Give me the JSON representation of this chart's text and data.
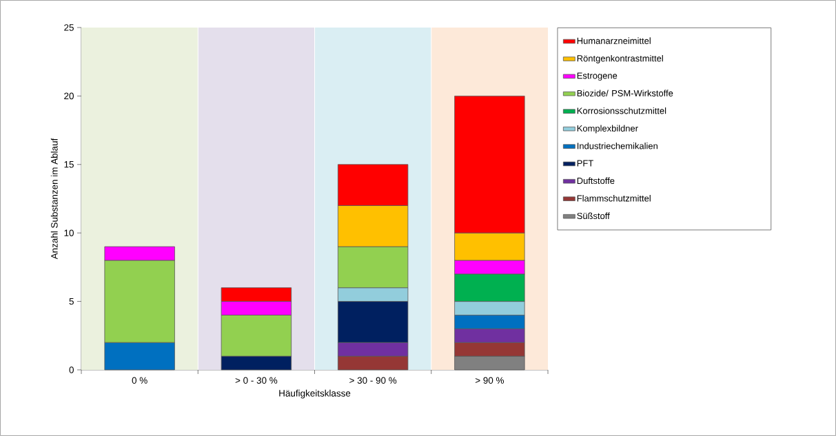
{
  "chart_data": {
    "type": "bar",
    "stacked": true,
    "xlabel": "Häufigkeitsklasse",
    "ylabel": "Anzahl Substanzen im Ablauf",
    "categories": [
      "0 %",
      "> 0 - 30 %",
      "> 30 - 90 %",
      "> 90 %"
    ],
    "ylim": [
      0,
      25
    ],
    "yticks": [
      0,
      5,
      10,
      15,
      20,
      25
    ],
    "grid": false,
    "legend": "right",
    "bands": [
      {
        "axis": "x",
        "from": "0 %",
        "to": "0 %",
        "color": "#ebf1de"
      },
      {
        "axis": "x",
        "from": "> 0 - 30 %",
        "to": "> 0 - 30 %",
        "color": "#e4dfec"
      },
      {
        "axis": "x",
        "from": "> 30 - 90 %",
        "to": "> 30 - 90 %",
        "color": "#daeef3"
      },
      {
        "axis": "x",
        "from": "> 90 %",
        "to": "> 90 %",
        "color": "#fde9d9"
      }
    ],
    "series": [
      {
        "name": "Süßstoff",
        "color": "#808080",
        "values": [
          null,
          null,
          null,
          1
        ]
      },
      {
        "name": "Flammschutzmittel",
        "color": "#953735",
        "values": [
          null,
          null,
          1,
          1
        ]
      },
      {
        "name": "Duftstoffe",
        "color": "#7030a0",
        "values": [
          null,
          null,
          1,
          1
        ]
      },
      {
        "name": "PFT",
        "color": "#002060",
        "values": [
          null,
          1,
          3,
          null
        ]
      },
      {
        "name": "Industriechemikalien",
        "color": "#0070c0",
        "values": [
          2,
          null,
          null,
          1
        ]
      },
      {
        "name": "Komplexbildner",
        "color": "#92cddc",
        "values": [
          null,
          null,
          1,
          1
        ]
      },
      {
        "name": "Korrosionsschutzmittel",
        "color": "#00b050",
        "values": [
          null,
          null,
          null,
          2
        ]
      },
      {
        "name": "Biozide/ PSM-Wirkstoffe",
        "color": "#92d050",
        "values": [
          6,
          3,
          3,
          null
        ]
      },
      {
        "name": "Estrogene",
        "color": "#ff00ff",
        "values": [
          1,
          1,
          null,
          1
        ]
      },
      {
        "name": "Röntgenkontrastmittel",
        "color": "#ffc000",
        "values": [
          null,
          null,
          3,
          2
        ]
      },
      {
        "name": "Humanarzneimittel",
        "color": "#ff0000",
        "values": [
          null,
          1,
          3,
          10
        ]
      }
    ]
  }
}
